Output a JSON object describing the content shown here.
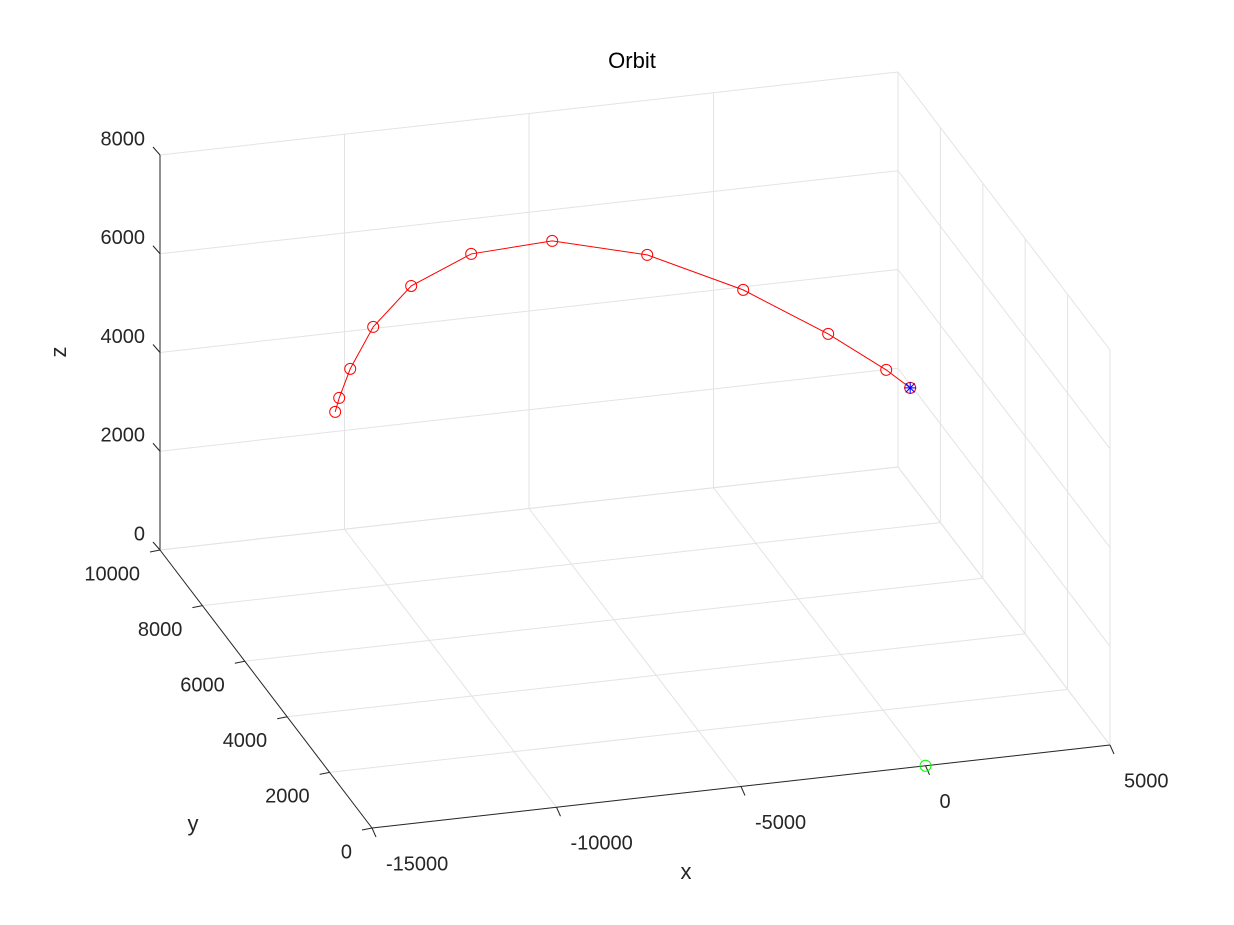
{
  "chart_data": {
    "type": "line3d",
    "title": "Orbit",
    "x_label": "x",
    "y_label": "y",
    "z_label": "z",
    "xlim": [
      -15000,
      5000
    ],
    "ylim": [
      0,
      10000
    ],
    "zlim": [
      0,
      8000
    ],
    "xticks": [
      -15000,
      -10000,
      -5000,
      0,
      5000
    ],
    "yticks": [
      0,
      2000,
      4000,
      6000,
      8000,
      10000
    ],
    "zticks": [
      0,
      2000,
      4000,
      6000,
      8000
    ],
    "grid": true,
    "series": [
      {
        "color": "#ff0000",
        "marker": "o",
        "x": [
          -10827,
          -10718,
          -10420,
          -9797,
          -8767,
          -7141,
          -4946,
          -2371,
          230,
          2534,
          4106,
          4756
        ],
        "y": [
          9000,
          9000,
          9000,
          9000,
          9000,
          9000,
          9000,
          9000,
          9000,
          9000,
          9000,
          9000
        ],
        "z": [
          3010,
          3283,
          3846,
          4644,
          5387,
          5899,
          5978,
          5478,
          4551,
          3466,
          2605,
          2186
        ]
      },
      {
        "color": "#0000ff",
        "marker": "*",
        "x": [
          4756
        ],
        "y": [
          9000
        ],
        "z": [
          2186
        ]
      },
      {
        "color": "#00ff00",
        "marker": "o",
        "x": [
          0
        ],
        "y": [
          0
        ],
        "z": [
          0
        ]
      }
    ]
  }
}
